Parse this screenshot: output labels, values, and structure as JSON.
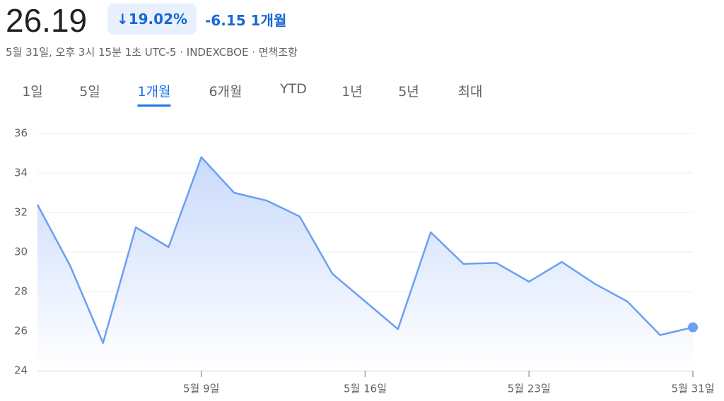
{
  "header": {
    "price": "26.19",
    "change_pct": "19.02%",
    "change_abs": "-6.15",
    "period": "1개월",
    "timestamp": "5월 31일, 오후 3시 15분 1초 UTC-5 · INDEXCBOE · 면책조항"
  },
  "tabs": [
    "1일",
    "5일",
    "1개월",
    "6개월",
    "YTD",
    "1년",
    "5년",
    "최대"
  ],
  "chart_data": {
    "type": "area",
    "categories": [
      null,
      null,
      null,
      null,
      null,
      "5월 9일",
      null,
      null,
      null,
      null,
      "5월 16일",
      null,
      null,
      null,
      null,
      "5월 23일",
      null,
      null,
      null,
      null,
      "5월 31일"
    ],
    "values": [
      32.4,
      29.3,
      25.4,
      31.25,
      30.25,
      34.8,
      33.0,
      32.6,
      31.8,
      28.9,
      27.5,
      26.1,
      31.0,
      29.4,
      29.45,
      28.5,
      29.5,
      28.4,
      27.5,
      25.8,
      26.19
    ],
    "color": "#6b9ff2",
    "ylim": [
      24,
      36
    ],
    "yticks": [
      24,
      26,
      28,
      30,
      32,
      34,
      36
    ],
    "grid": true
  }
}
